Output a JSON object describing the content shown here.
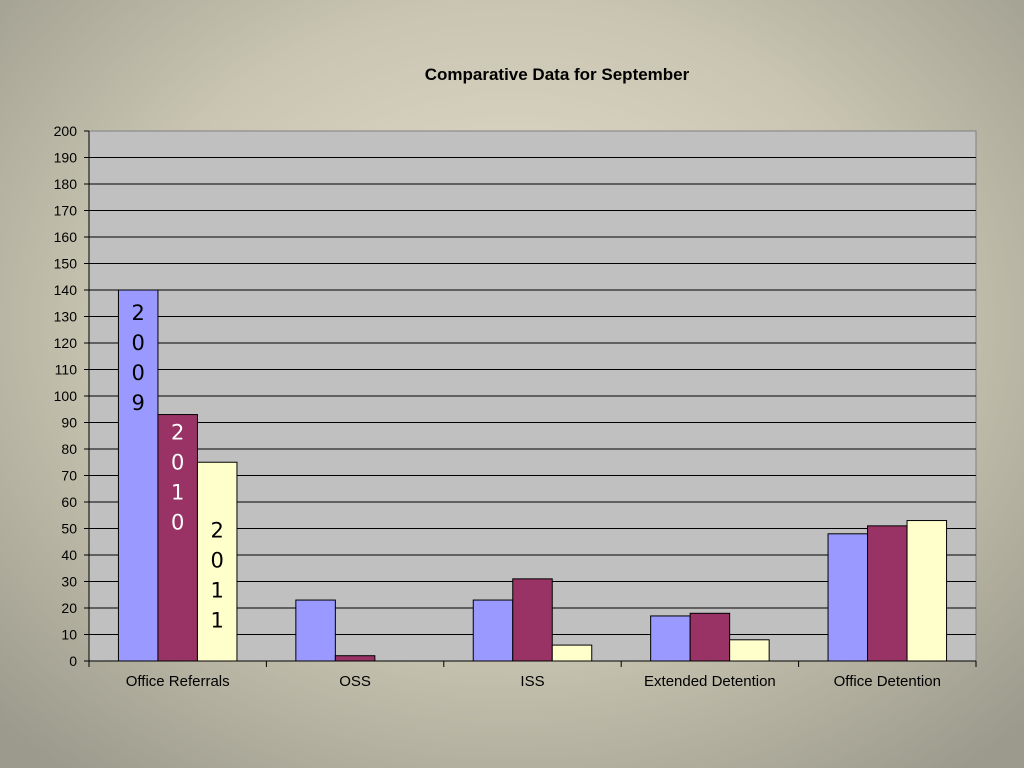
{
  "chart_data": {
    "type": "bar",
    "title": "Comparative Data for September",
    "categories": [
      "Office Referrals",
      "OSS",
      "ISS",
      "Extended Detention",
      "Office Detention"
    ],
    "series": [
      {
        "name": "2009",
        "color": "#9999ff",
        "values": [
          140,
          23,
          23,
          17,
          48
        ]
      },
      {
        "name": "2010",
        "color": "#993366",
        "values": [
          93,
          2,
          31,
          18,
          51
        ]
      },
      {
        "name": "2011",
        "color": "#ffffcc",
        "values": [
          75,
          0,
          6,
          8,
          53
        ]
      }
    ],
    "ylim": [
      0,
      200
    ],
    "ytick_step": 10,
    "grid": true,
    "plot_background": "#c0c0c0",
    "series_label_placement": "vertical-inside-first-category-bars"
  }
}
